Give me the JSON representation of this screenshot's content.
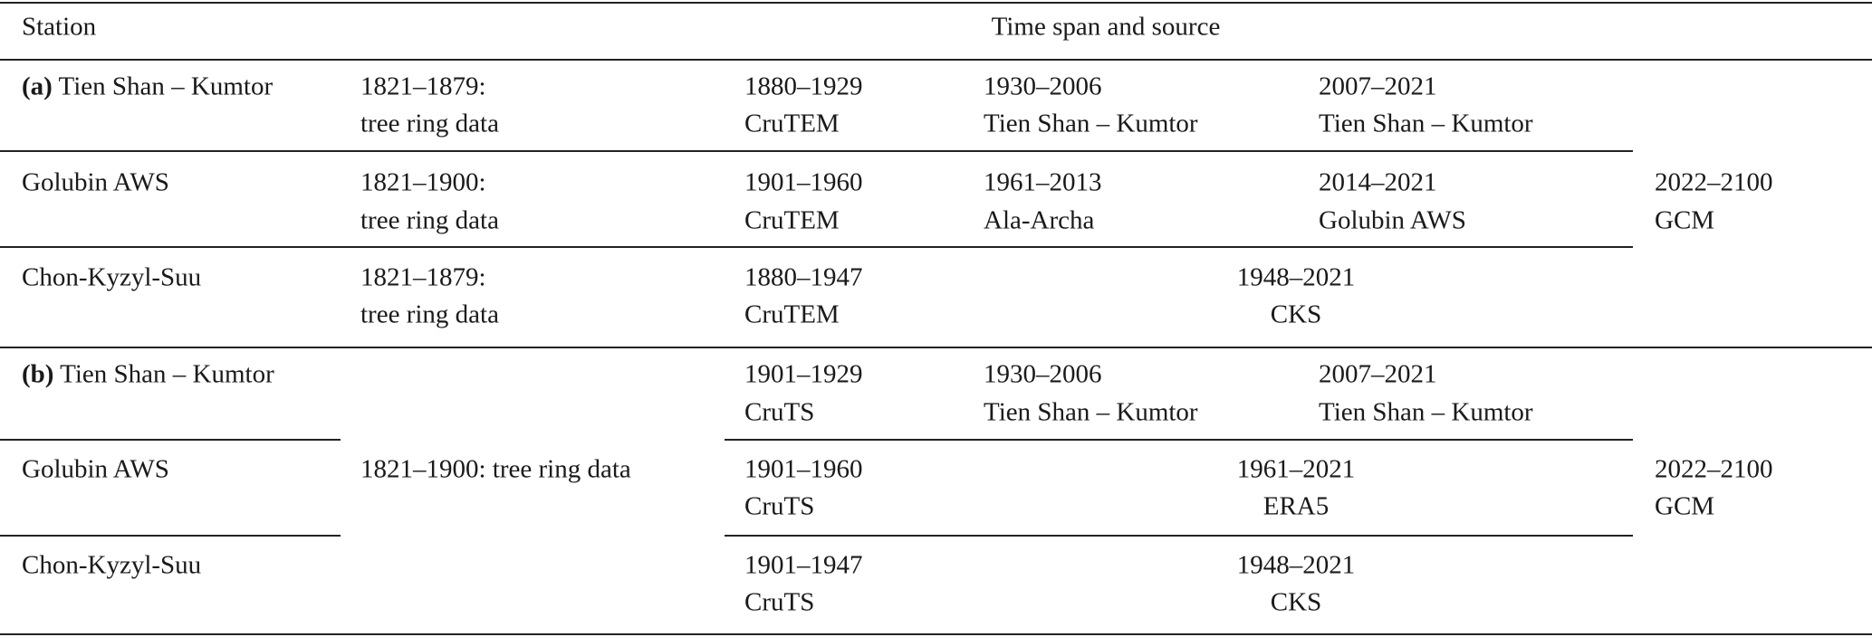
{
  "header": {
    "station": "Station",
    "time_span": "Time span and source"
  },
  "sections": [
    {
      "label": "(a)",
      "shared": {
        "span": "2022–2100",
        "source": "GCM"
      },
      "rows": [
        {
          "station": "Tien Shan – Kumtor",
          "periods": [
            {
              "span": "1821–1879:",
              "source": "tree ring data"
            },
            {
              "span": "1880–1929",
              "source": "CruTEM"
            },
            {
              "span": "1930–2006",
              "source": "Tien Shan – Kumtor"
            },
            {
              "span": "2007–2021",
              "source": "Tien Shan – Kumtor"
            }
          ]
        },
        {
          "station": "Golubin AWS",
          "periods": [
            {
              "span": "1821–1900:",
              "source": "tree ring data"
            },
            {
              "span": "1901–1960",
              "source": "CruTEM"
            },
            {
              "span": "1961–2013",
              "source": "Ala-Archa"
            },
            {
              "span": "2014–2021",
              "source": "Golubin AWS"
            }
          ]
        },
        {
          "station": "Chon-Kyzyl-Suu",
          "periods": [
            {
              "span": "1821–1879:",
              "source": "tree ring data"
            },
            {
              "span": "1880–1947",
              "source": "CruTEM"
            },
            {
              "span": "1948–2021",
              "source": "CKS"
            }
          ]
        }
      ]
    },
    {
      "label": "(b)",
      "shared": {
        "span": "2022–2100",
        "source": "GCM"
      },
      "early": "1821–1900: tree ring data",
      "rows": [
        {
          "station": "Tien Shan – Kumtor",
          "periods": [
            {
              "span": "1901–1929",
              "source": "CruTS"
            },
            {
              "span": "1930–2006",
              "source": "Tien Shan – Kumtor"
            },
            {
              "span": "2007–2021",
              "source": "Tien Shan – Kumtor"
            }
          ]
        },
        {
          "station": "Golubin AWS",
          "periods": [
            {
              "span": "1901–1960",
              "source": "CruTS"
            },
            {
              "span": "1961–2021",
              "source": "ERA5"
            }
          ]
        },
        {
          "station": "Chon-Kyzyl-Suu",
          "periods": [
            {
              "span": "1901–1947",
              "source": "CruTS"
            },
            {
              "span": "1948–2021",
              "source": "CKS"
            }
          ]
        }
      ]
    }
  ]
}
